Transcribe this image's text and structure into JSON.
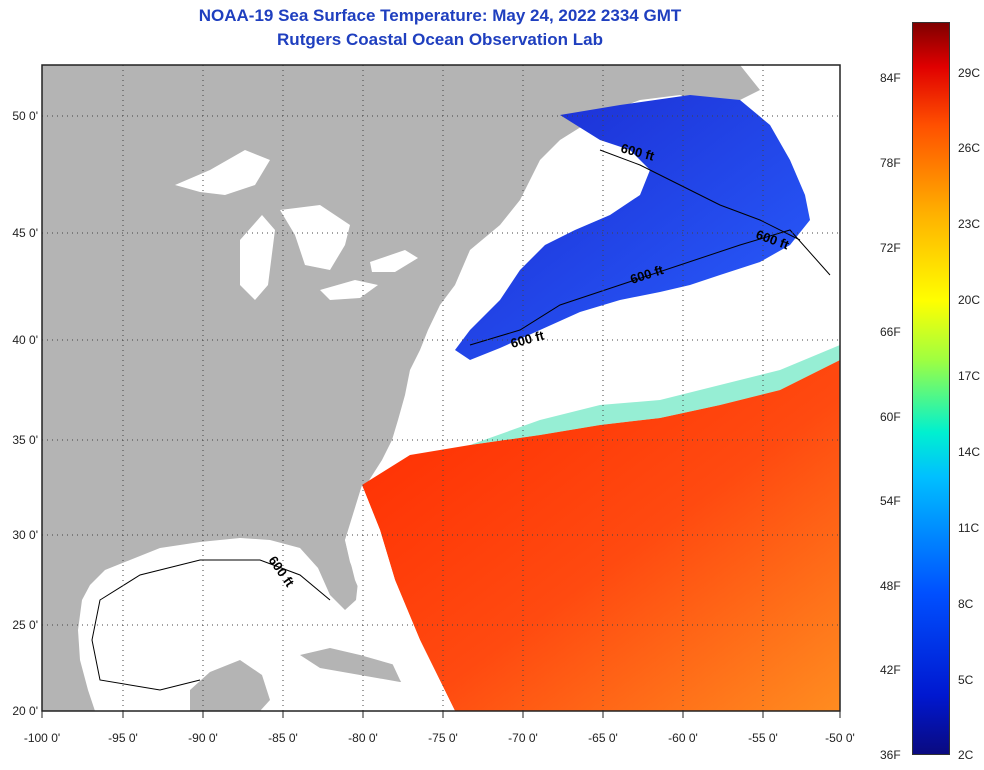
{
  "title": {
    "line1": "NOAA-19 Sea Surface Temperature:  May 24, 2022 2334 GMT",
    "line2": "Rutgers Coastal Ocean Observation Lab"
  },
  "map": {
    "lon_labels": [
      "-100 0'",
      "-95 0'",
      "-90 0'",
      "-85 0'",
      "-80 0'",
      "-75 0'",
      "-70 0'",
      "-65 0'",
      "-60 0'",
      "-55 0'",
      "-50 0'"
    ],
    "lat_labels": [
      "50 0'",
      "45 0'",
      "40 0'",
      "35 0'",
      "30 0'",
      "25 0'",
      "20 0'"
    ],
    "contour_labels": [
      "600 ft",
      "600 ft",
      "600 ft",
      "600 ft",
      "600 ft"
    ],
    "colors": {
      "land": "#b4b4b4",
      "cloud": "#ffffff",
      "cold": "#1e3cdc",
      "warm": "#ff4010",
      "contour": "#000000"
    }
  },
  "colorbar": {
    "fahrenheit": [
      "84F",
      "78F",
      "72F",
      "66F",
      "60F",
      "54F",
      "48F",
      "42F",
      "36F"
    ],
    "celsius": [
      "29C",
      "26C",
      "23C",
      "20C",
      "17C",
      "14C",
      "11C",
      "8C",
      "5C",
      "2C"
    ],
    "range_f": [
      36,
      88
    ],
    "range_c": [
      2,
      31
    ]
  }
}
